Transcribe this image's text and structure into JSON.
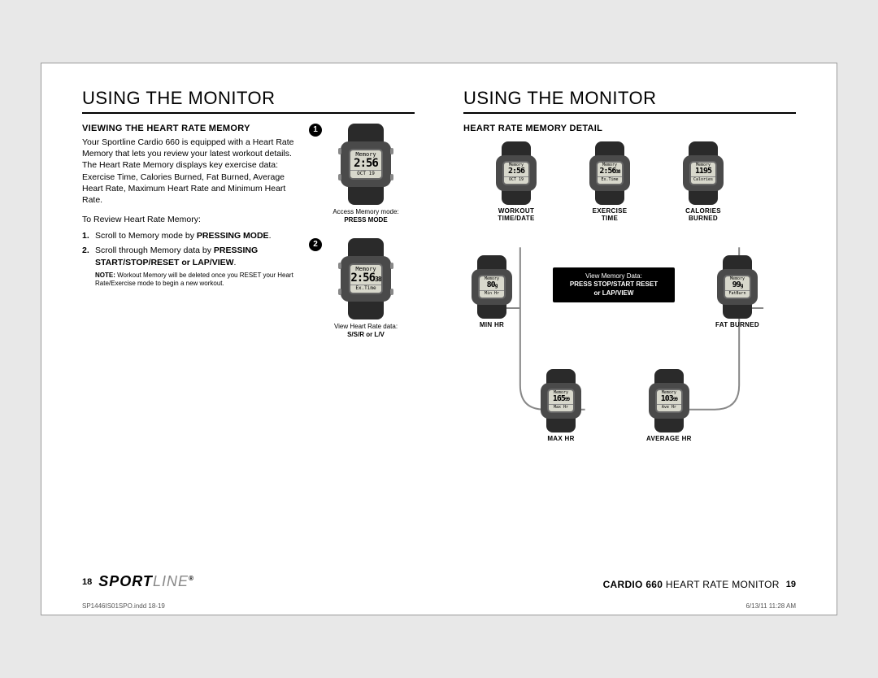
{
  "left": {
    "section_title": "USING THE MONITOR",
    "subsection": "VIEWING THE HEART RATE MEMORY",
    "intro": "Your Sportline Cardio 660 is equipped with a Heart Rate Memory that lets you review your latest workout details. The Heart Rate Memory displays key exercise data: Exercise Time, Calories Burned, Fat Burned, Average Heart Rate, Maximum Heart Rate and Minimum Heart Rate.",
    "review_label": "To Review Heart Rate Memory:",
    "step1_pre": "Scroll to Memory mode by ",
    "step1_bold": "PRESSING MODE",
    "step2_pre": "Scroll through Memory data by ",
    "step2_bold": "PRESSING START/STOP/RESET or LAP/VIEW",
    "note_label": "NOTE:",
    "note_text": " Workout Memory will be deleted once you RESET your Heart Rate/Exercise mode to begin a new workout.",
    "watch1": {
      "l1": "Memory",
      "l2": "2:56",
      "l3": "OCT 19",
      "caption_pre": "Access Memory mode:",
      "caption_bold": "PRESS MODE",
      "bullet": "1"
    },
    "watch2": {
      "l1": "Memory",
      "l2": "2:56",
      "l2b": "38",
      "l3": "Ex.Time",
      "caption_pre": "View Heart Rate data:",
      "caption_bold": "S/S/R or L/V",
      "bullet": "2"
    },
    "page_num": "18"
  },
  "right": {
    "section_title": "USING THE MONITOR",
    "subsection": "HEART RATE MEMORY DETAIL",
    "center_box_l1": "View Memory Data:",
    "center_box_l2": "PRESS STOP/START RESET",
    "center_box_l3": "or LAP/VIEW",
    "nodes": {
      "workout": {
        "l1": "Memory",
        "l2": "2:56",
        "l3": "OCT 19",
        "label": "WORKOUT\nTIME/DATE"
      },
      "exercise": {
        "l1": "Memory",
        "l2": "2:56",
        "l2b": "38",
        "l3": "Ex.Time",
        "label": "EXERCISE\nTIME"
      },
      "calories": {
        "l1": "Memory",
        "l2": "1195",
        "l3": "Calories",
        "label": "CALORIES\nBURNED"
      },
      "fat": {
        "l1": "Memory",
        "l2": "99",
        "l2b": "g",
        "l3": "FatBurn",
        "label": "FAT BURNED"
      },
      "avg": {
        "l1": "Memory",
        "l2": "103",
        "l2b": "99",
        "l3": "Ave Hr",
        "label": "AVERAGE HR"
      },
      "max": {
        "l1": "Memory",
        "l2": "165",
        "l2b": "99",
        "l3": "Max Hr",
        "label": "MAX HR"
      },
      "min": {
        "l1": "Memory",
        "l2": "80",
        "l2b": "g",
        "l3": "Min Hr",
        "label": "MIN HR"
      }
    },
    "product_bold": "CARDIO 660",
    "product_rest": " HEART RATE MONITOR",
    "page_num": "19"
  },
  "brand_main": "SPORT",
  "brand_thin": "LINE",
  "brand_reg": "®",
  "doc_file": "SP1446IS01SPO.indd   18-19",
  "doc_date": "6/13/11   11:28 AM"
}
